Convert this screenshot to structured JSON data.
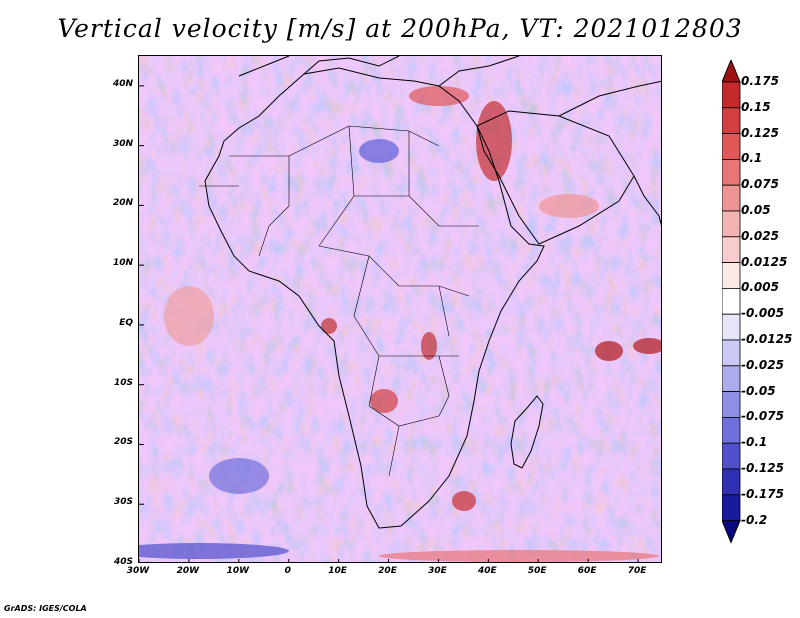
{
  "title": "Vertical velocity [m/s] at 200hPa, VT: 2021012803",
  "footer": "GrADS: IGES/COLA",
  "map": {
    "lat_labels": [
      "40N",
      "30N",
      "20N",
      "10N",
      "EQ",
      "10S",
      "20S",
      "30S",
      "40S"
    ],
    "lon_labels": [
      "30W",
      "20W",
      "10W",
      "0",
      "10E",
      "20E",
      "30E",
      "40E",
      "50E",
      "60E",
      "70E"
    ],
    "lat_values": [
      40,
      30,
      20,
      10,
      0,
      -10,
      -20,
      -30,
      -40
    ],
    "lon_values": [
      -30,
      -20,
      -10,
      0,
      10,
      20,
      30,
      40,
      50,
      60,
      70
    ],
    "lat_range": [
      -40,
      45
    ],
    "lon_range": [
      -30,
      75
    ]
  },
  "colorbar": {
    "labels": [
      "0.175",
      "0.15",
      "0.125",
      "0.1",
      "0.075",
      "0.05",
      "0.025",
      "0.0125",
      "0.005",
      "-0.005",
      "-0.0125",
      "-0.025",
      "-0.05",
      "-0.075",
      "-0.1",
      "-0.125",
      "-0.175",
      "-0.2"
    ],
    "colors": [
      "#b01818",
      "#c42a2a",
      "#d43e3e",
      "#e05858",
      "#e87676",
      "#ef9494",
      "#f4b2b2",
      "#f8cccc",
      "#fde8e8",
      "#ffffff",
      "#e6e6fa",
      "#cacaf4",
      "#acacec",
      "#8e8ee4",
      "#7070dc",
      "#5050cc",
      "#3030b4",
      "#1a1a9c",
      "#0a0a80"
    ],
    "top_arrow_color": "#a01010",
    "bottom_arrow_color": "#0a0a80"
  }
}
